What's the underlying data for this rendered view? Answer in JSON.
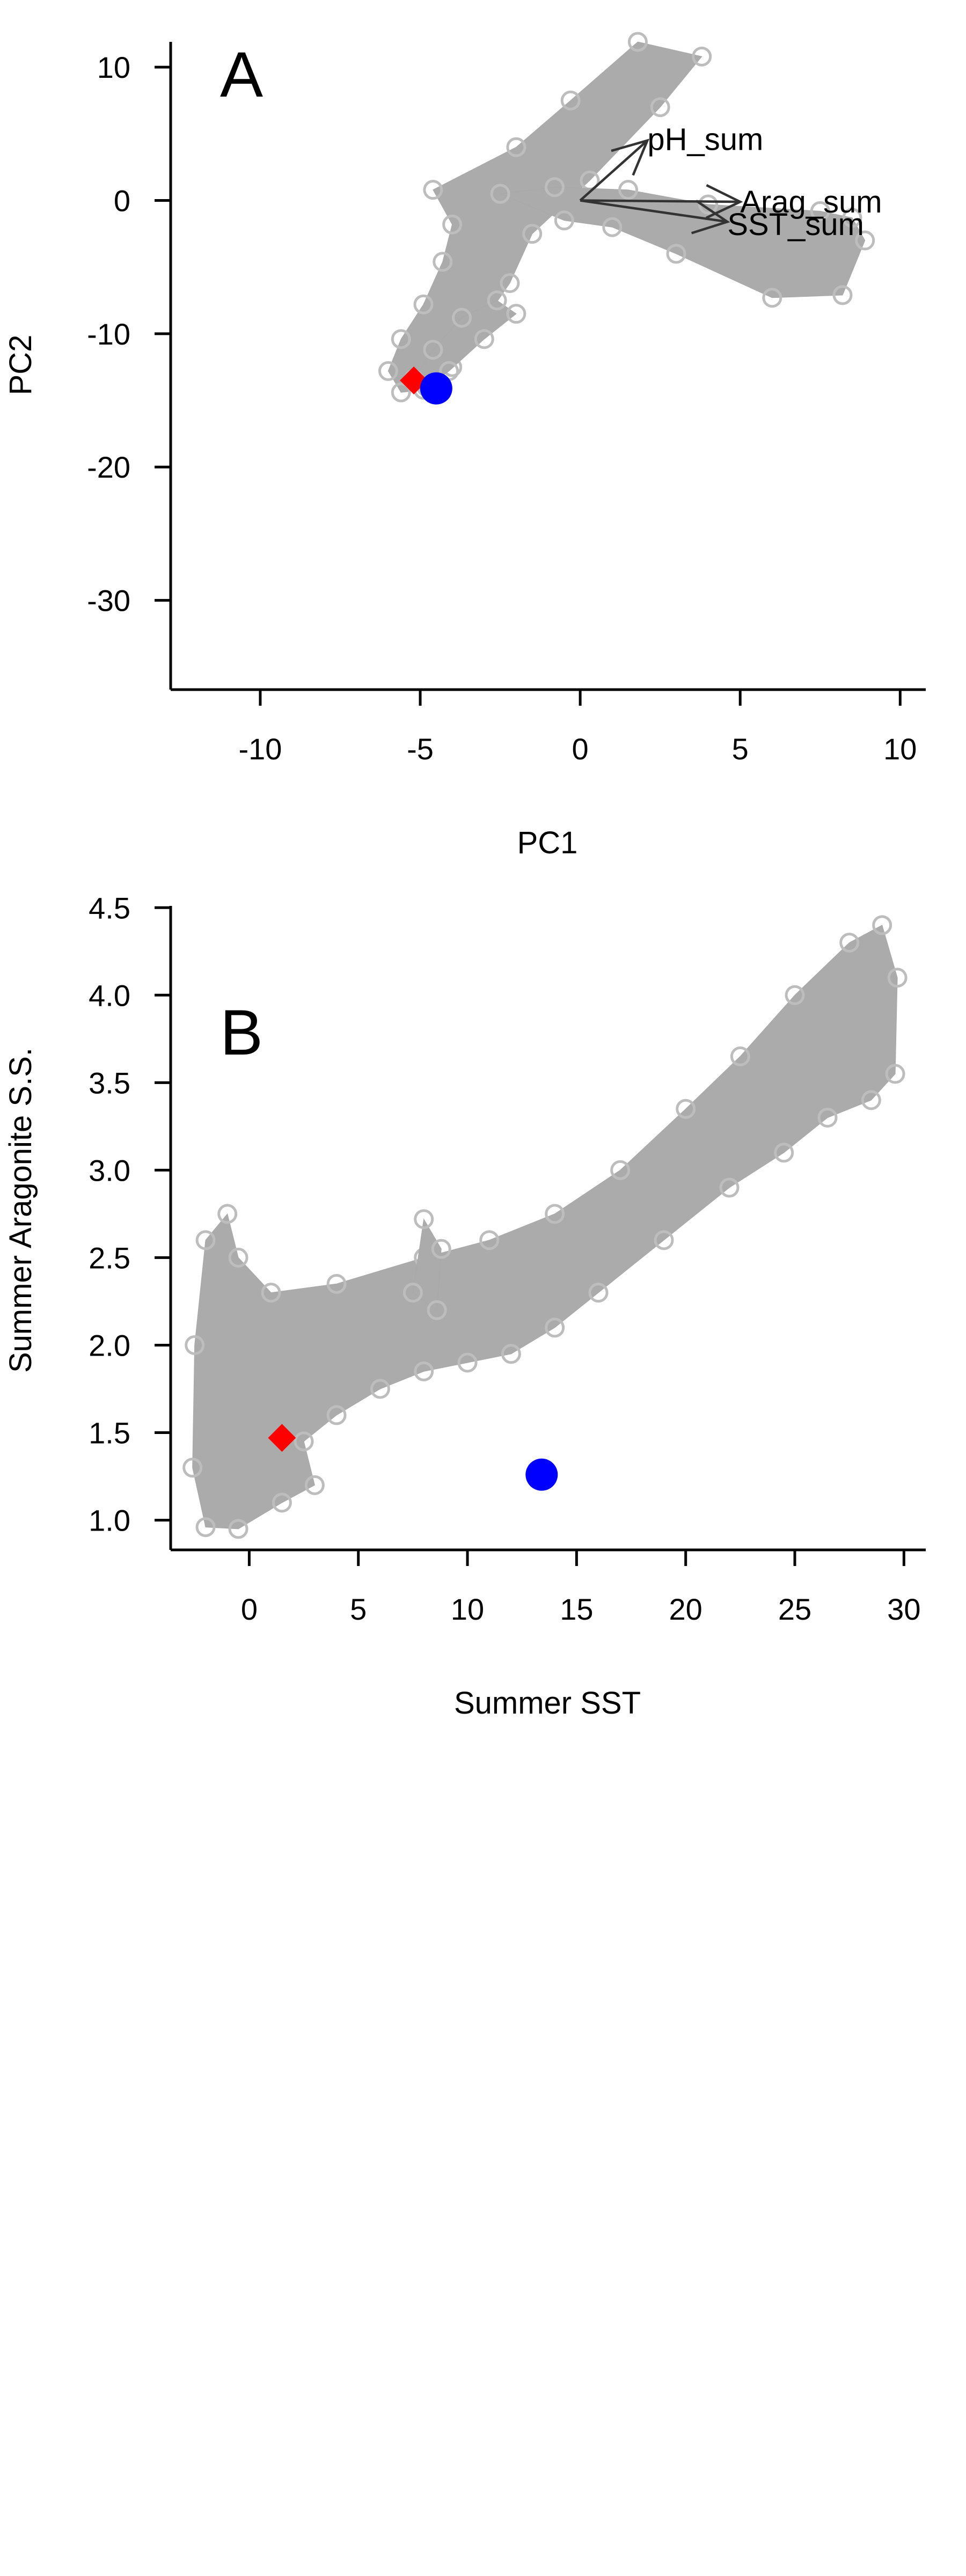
{
  "chart_data": [
    {
      "panel": "A",
      "type": "scatter",
      "xlabel": "PC1",
      "ylabel": "PC2",
      "xlim": [
        -12.8,
        10.8
      ],
      "ylim": [
        -36.7,
        11.9
      ],
      "xticks": [
        -10,
        -5,
        0,
        5,
        10
      ],
      "yticks": [
        -30,
        -20,
        -10,
        0,
        10
      ],
      "grid": false,
      "background_cloud": {
        "description_color": "#aaaaaa",
        "outline": [
          [
            -4.0,
            -12.5
          ],
          [
            -2.2,
            -6.2
          ],
          [
            -1.5,
            -2.5
          ],
          [
            0.3,
            1.5
          ],
          [
            2.5,
            7.0
          ],
          [
            3.8,
            10.8
          ],
          [
            1.8,
            11.9
          ],
          [
            -0.3,
            7.5
          ],
          [
            -2.0,
            4.0
          ],
          [
            -4.6,
            0.8
          ],
          [
            -4.0,
            -1.8
          ],
          [
            -4.3,
            -4.6
          ],
          [
            -4.9,
            -7.8
          ],
          [
            -5.6,
            -10.4
          ],
          [
            -6.0,
            -12.8
          ],
          [
            -5.6,
            -14.4
          ],
          [
            -4.9,
            -14.2
          ]
        ],
        "outline_2": [
          [
            -0.5,
            -1.5
          ],
          [
            1.0,
            -2.0
          ],
          [
            3.0,
            -4.0
          ],
          [
            6.0,
            -7.3
          ],
          [
            8.2,
            -7.1
          ],
          [
            8.9,
            -3.0
          ],
          [
            8.5,
            -1.3
          ],
          [
            7.5,
            -0.8
          ],
          [
            4.0,
            -0.3
          ],
          [
            1.5,
            0.8
          ],
          [
            -0.8,
            1.0
          ],
          [
            -2.5,
            0.5
          ]
        ],
        "outline_3": [
          [
            -5.2,
            -13.4
          ],
          [
            -4.6,
            -11.2
          ],
          [
            -3.7,
            -8.8
          ],
          [
            -2.6,
            -7.5
          ],
          [
            -2.0,
            -8.5
          ],
          [
            -3.0,
            -10.4
          ],
          [
            -4.1,
            -12.8
          ],
          [
            -4.8,
            -14.0
          ]
        ]
      },
      "series": [
        {
          "name": "",
          "marker": "diamond",
          "color": "#ff0000",
          "points": [
            [
              -5.2,
              -13.5
            ]
          ]
        },
        {
          "name": "",
          "marker": "circle",
          "color": "#0000ff",
          "points": [
            [
              -4.5,
              -14.1
            ]
          ]
        }
      ],
      "loadings": [
        {
          "label": "pH_sum",
          "x": 2.1,
          "y": 4.5,
          "label_x": 2.1,
          "label_y": 4.6
        },
        {
          "label": "Arag_sum",
          "x": 5.0,
          "y": -0.1,
          "label_x": 5.0,
          "label_y": -0.1
        },
        {
          "label": "SST_sum",
          "x": 4.6,
          "y": -1.6,
          "label_x": 4.6,
          "label_y": -1.8
        }
      ]
    },
    {
      "panel": "B",
      "type": "scatter",
      "xlabel": "Summer SST",
      "ylabel": "Summer Aragonite S.S.",
      "xlim": [
        -3.6,
        31.0
      ],
      "ylim": [
        0.83,
        4.51
      ],
      "xticks": [
        0,
        5,
        10,
        15,
        20,
        25,
        30
      ],
      "yticks": [
        1.0,
        1.5,
        2.0,
        2.5,
        3.0,
        3.5,
        4.0,
        4.5
      ],
      "ytick_labels": [
        "1.0",
        "1.5",
        "2.0",
        "2.5",
        "3.0",
        "3.5",
        "4.0",
        "4.5"
      ],
      "grid": false,
      "background_cloud": {
        "description_color": "#aaaaaa",
        "outline": [
          [
            -2.0,
            0.96
          ],
          [
            -0.5,
            0.95
          ],
          [
            1.5,
            1.1
          ],
          [
            3.0,
            1.2
          ],
          [
            2.5,
            1.45
          ],
          [
            4.0,
            1.6
          ],
          [
            6.0,
            1.75
          ],
          [
            8.0,
            1.85
          ],
          [
            10.0,
            1.9
          ],
          [
            12.0,
            1.95
          ],
          [
            14.0,
            2.1
          ],
          [
            16.0,
            2.3
          ],
          [
            19.0,
            2.6
          ],
          [
            22.0,
            2.9
          ],
          [
            24.5,
            3.1
          ],
          [
            26.5,
            3.3
          ],
          [
            28.5,
            3.4
          ],
          [
            29.6,
            3.55
          ],
          [
            29.7,
            4.1
          ],
          [
            29.0,
            4.4
          ],
          [
            27.5,
            4.3
          ],
          [
            25.0,
            4.0
          ],
          [
            22.5,
            3.65
          ],
          [
            20.0,
            3.35
          ],
          [
            17.0,
            3.0
          ],
          [
            14.0,
            2.75
          ],
          [
            11.0,
            2.6
          ],
          [
            8.0,
            2.5
          ],
          [
            4.0,
            2.35
          ],
          [
            1.0,
            2.3
          ],
          [
            -0.5,
            2.5
          ],
          [
            -1.0,
            2.75
          ],
          [
            -2.0,
            2.6
          ],
          [
            -2.5,
            2.0
          ],
          [
            -2.6,
            1.3
          ]
        ],
        "outline_2": [
          [
            7.5,
            2.3
          ],
          [
            8.0,
            2.72
          ],
          [
            8.8,
            2.55
          ],
          [
            8.6,
            2.2
          ]
        ]
      },
      "series": [
        {
          "name": "",
          "marker": "diamond",
          "color": "#ff0000",
          "points": [
            [
              1.5,
              1.47
            ]
          ]
        },
        {
          "name": "",
          "marker": "circle",
          "color": "#0000ff",
          "points": [
            [
              13.4,
              1.26
            ]
          ]
        }
      ]
    }
  ]
}
